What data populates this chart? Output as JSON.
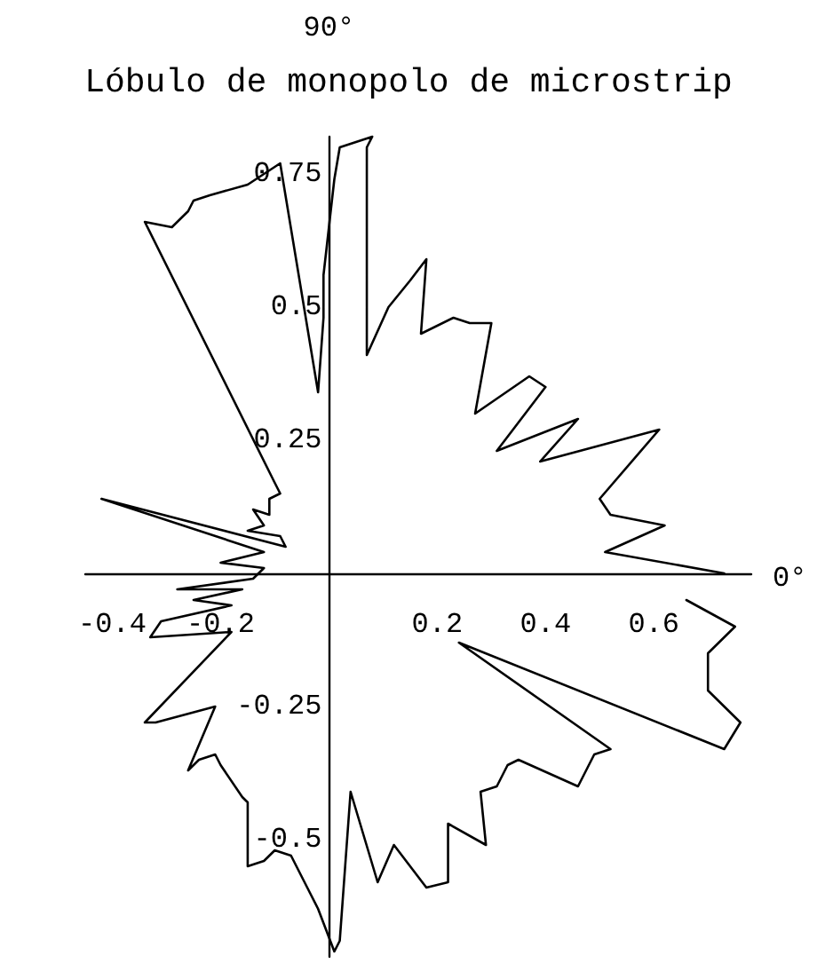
{
  "chart_data": {
    "type": "line",
    "title": "Lóbulo de monopolo de microstrip",
    "annotations": [
      "90°",
      "0°"
    ],
    "xlim": [
      -0.45,
      0.78
    ],
    "ylim": [
      -0.72,
      0.82
    ],
    "xticks": [
      -0.4,
      -0.2,
      0.2,
      0.4,
      0.6
    ],
    "yticks": [
      -0.5,
      -0.25,
      0.25,
      0.5,
      0.75
    ],
    "marker": "none",
    "line_style": "solid",
    "color": "#000000",
    "x": [
      0.73,
      0.51,
      0.62,
      0.52,
      0.5,
      0.61,
      0.39,
      0.46,
      0.31,
      0.4,
      0.37,
      0.27,
      0.3,
      0.26,
      0.23,
      0.17,
      0.18,
      0.15,
      0.11,
      0.07,
      0.07,
      0.08,
      0.02,
      0.01,
      0.0,
      -0.01,
      -0.01,
      -0.02,
      -0.09,
      -0.15,
      -0.22,
      -0.25,
      -0.26,
      -0.29,
      -0.34,
      -0.1,
      -0.09,
      -0.11,
      -0.11,
      -0.14,
      -0.12,
      -0.15,
      -0.09,
      -0.08,
      -0.42,
      -0.12,
      -0.2,
      -0.12,
      -0.14,
      -0.28,
      -0.16,
      -0.25,
      -0.18,
      -0.31,
      -0.33,
      -0.18,
      -0.34,
      -0.32,
      -0.21,
      -0.26,
      -0.24,
      -0.21,
      -0.2,
      -0.16,
      -0.15,
      -0.15,
      -0.12,
      -0.1,
      -0.07,
      -0.04,
      -0.02,
      0.01,
      0.02,
      0.03,
      0.04,
      0.09,
      0.12,
      0.18,
      0.22,
      0.22,
      0.29,
      0.28,
      0.31,
      0.33,
      0.35,
      0.46,
      0.49,
      0.52,
      0.24,
      0.73,
      0.76,
      0.7,
      0.7,
      0.7,
      0.75,
      0.66
    ],
    "values": [
      0.0,
      0.04,
      0.09,
      0.11,
      0.14,
      0.27,
      0.21,
      0.29,
      0.23,
      0.35,
      0.37,
      0.3,
      0.47,
      0.47,
      0.48,
      0.45,
      0.59,
      0.55,
      0.5,
      0.41,
      0.8,
      0.82,
      0.8,
      0.74,
      0.65,
      0.56,
      0.48,
      0.34,
      0.77,
      0.73,
      0.71,
      0.7,
      0.68,
      0.65,
      0.66,
      0.17,
      0.15,
      0.14,
      0.11,
      0.12,
      0.09,
      0.08,
      0.07,
      0.05,
      0.14,
      0.04,
      0.02,
      0.01,
      -0.01,
      -0.03,
      -0.03,
      -0.05,
      -0.06,
      -0.09,
      -0.12,
      -0.11,
      -0.28,
      -0.28,
      -0.25,
      -0.37,
      -0.35,
      -0.34,
      -0.36,
      -0.42,
      -0.43,
      -0.55,
      -0.54,
      -0.52,
      -0.53,
      -0.59,
      -0.63,
      -0.71,
      -0.69,
      -0.55,
      -0.41,
      -0.58,
      -0.51,
      -0.59,
      -0.58,
      -0.47,
      -0.51,
      -0.41,
      -0.4,
      -0.36,
      -0.35,
      -0.4,
      -0.34,
      -0.33,
      -0.13,
      -0.33,
      -0.28,
      -0.22,
      -0.18,
      -0.15,
      -0.1,
      -0.05
    ]
  }
}
